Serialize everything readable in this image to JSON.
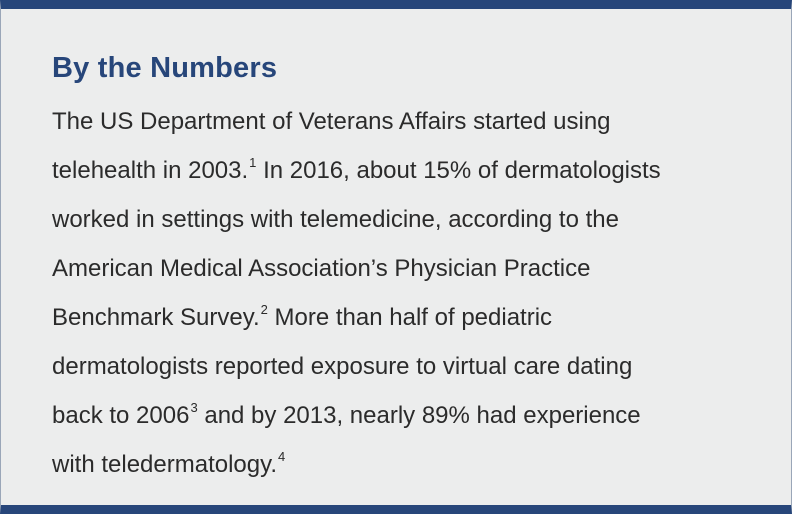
{
  "box": {
    "title": "By the Numbers",
    "colors": {
      "accent": "#27467a",
      "background": "#eceded",
      "text": "#2b2b2b"
    },
    "lines": [
      {
        "text": "The US Department of Veterans Affairs started using"
      },
      {
        "text": "telehealth in 2003.",
        "sup": "1",
        "after": " In 2016, about 15% of  dermatologists"
      },
      {
        "text": "worked in settings with telemedicine, according to the"
      },
      {
        "text": "American Medical Association’s Physician Practice"
      },
      {
        "text": "Benchmark Survey.",
        "sup": "2",
        "after": " More than half of pediatric"
      },
      {
        "text": "dermatologists reported exposure to virtual care dating"
      },
      {
        "text": "back to 2006",
        "sup": "3",
        "after": " and by 2013, nearly 89% had experience"
      },
      {
        "text": "with teledermatology.",
        "sup": "4"
      }
    ]
  }
}
